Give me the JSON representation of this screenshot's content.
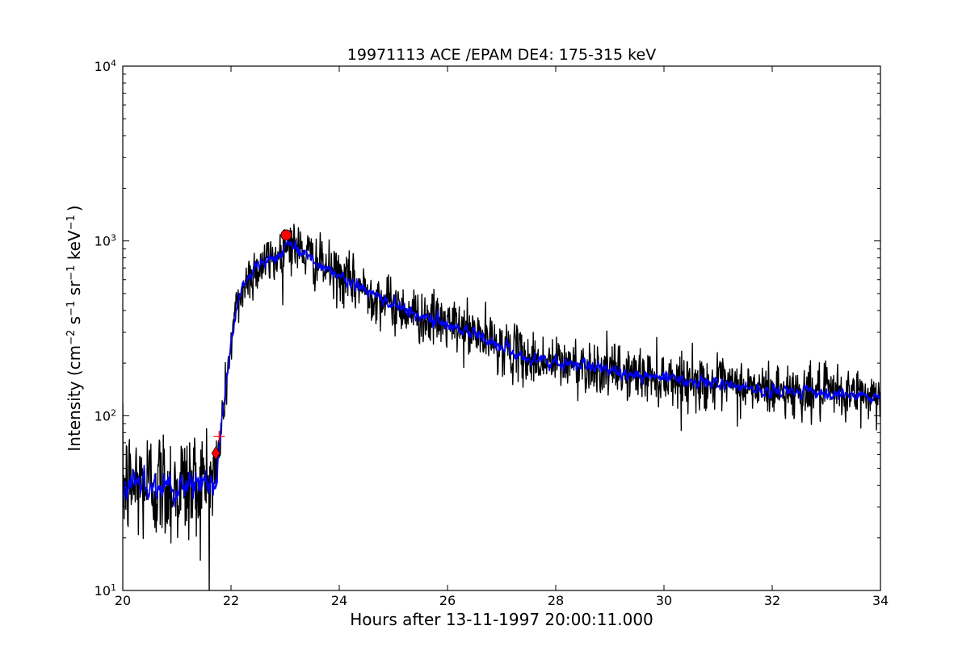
{
  "chart_data": {
    "type": "line",
    "title": "19971113 ACE /EPAM DE4: 175-315 keV",
    "xlabel": "Hours after 13-11-1997 20:00:11.000",
    "ylabel": {
      "prefix": "Intensity (cm",
      "exp1": "−2",
      "s": " s",
      "exp2": "−1",
      "sr": " sr",
      "exp3": "−1",
      "kev": " keV",
      "exp4": "−1",
      "suffix": ")"
    },
    "xlim": [
      20,
      34
    ],
    "ylim": [
      10,
      10000
    ],
    "yscale": "log",
    "xticks": [
      "20",
      "22",
      "24",
      "26",
      "28",
      "30",
      "32",
      "34"
    ],
    "yticks": [
      {
        "base": "10",
        "exp": "1"
      },
      {
        "base": "10",
        "exp": "2"
      },
      {
        "base": "10",
        "exp": "3"
      },
      {
        "base": "10",
        "exp": "4"
      }
    ],
    "grid": false,
    "colors": {
      "raw": "#000000",
      "smoothed": "#0000ff",
      "markers": "#ff0000"
    },
    "series": [
      {
        "style": "raw",
        "anchors_x": [
          20.0,
          20.5,
          21.0,
          21.5,
          21.72,
          21.8,
          21.9,
          22.0,
          22.1,
          22.2,
          22.35,
          22.5,
          22.7,
          22.9,
          23.05,
          23.2,
          23.5,
          24.0,
          24.5,
          25.0,
          25.5,
          26.0,
          26.5,
          27.0,
          27.5,
          28.0,
          28.5,
          29.0,
          30.0,
          31.0,
          32.0,
          33.0,
          34.0
        ],
        "anchors_y": [
          40,
          41,
          39,
          41,
          44,
          75,
          140,
          260,
          400,
          520,
          640,
          710,
          770,
          830,
          1000,
          920,
          790,
          620,
          520,
          430,
          370,
          335,
          295,
          250,
          210,
          200,
          195,
          180,
          165,
          150,
          140,
          135,
          130
        ],
        "noise_pre": 0.17,
        "noise_post": 0.075
      },
      {
        "style": "smoothed",
        "anchors_x": [
          20.0,
          20.5,
          21.0,
          21.5,
          21.72,
          21.8,
          21.9,
          22.0,
          22.1,
          22.2,
          22.35,
          22.5,
          22.7,
          22.9,
          23.05,
          23.2,
          23.5,
          24.0,
          24.5,
          25.0,
          25.5,
          26.0,
          26.5,
          27.0,
          27.5,
          28.0,
          28.5,
          29.0,
          30.0,
          31.0,
          32.0,
          33.0,
          34.0
        ],
        "anchors_y": [
          40,
          41,
          39,
          41,
          44,
          75,
          140,
          260,
          400,
          520,
          640,
          710,
          770,
          830,
          1000,
          920,
          790,
          620,
          520,
          430,
          370,
          335,
          295,
          250,
          210,
          200,
          195,
          180,
          165,
          150,
          140,
          135,
          130
        ],
        "noise_pre": 0.08,
        "noise_post": 0.035
      }
    ],
    "markers": [
      {
        "shape": "diamond",
        "x": 21.72,
        "y": 61
      },
      {
        "shape": "plus",
        "x": 21.78,
        "y": 76
      },
      {
        "shape": "circle",
        "x": 23.02,
        "y": 1080
      }
    ]
  }
}
